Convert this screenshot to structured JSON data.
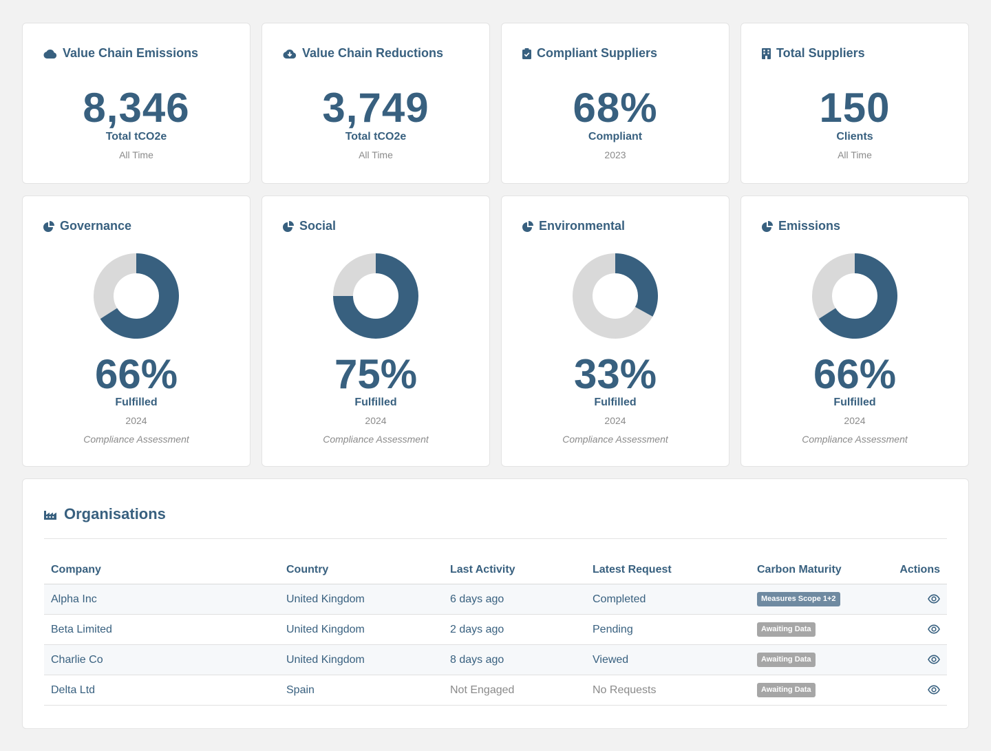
{
  "stats": [
    {
      "title": "Value Chain Emissions",
      "icon": "cloud-icon",
      "value": "8,346",
      "label": "Total tCO2e",
      "sub": "All Time"
    },
    {
      "title": "Value Chain Reductions",
      "icon": "cloud-download-icon",
      "value": "3,749",
      "label": "Total tCO2e",
      "sub": "All Time"
    },
    {
      "title": "Compliant Suppliers",
      "icon": "clipboard-check-icon",
      "value": "68%",
      "label": "Compliant",
      "sub": "2023"
    },
    {
      "title": "Total Suppliers",
      "icon": "building-icon",
      "value": "150",
      "label": "Clients",
      "sub": "All Time"
    }
  ],
  "compliance": [
    {
      "title": "Governance",
      "icon": "pie-chart-icon",
      "fraction": 0.66,
      "pct": "66%",
      "label": "Fulfilled",
      "year": "2024",
      "note": "Compliance Assessment"
    },
    {
      "title": "Social",
      "icon": "pie-chart-icon",
      "fraction": 0.75,
      "pct": "75%",
      "label": "Fulfilled",
      "year": "2024",
      "note": "Compliance Assessment"
    },
    {
      "title": "Environmental",
      "icon": "pie-chart-icon",
      "fraction": 0.33,
      "pct": "33%",
      "label": "Fulfilled",
      "year": "2024",
      "note": "Compliance Assessment"
    },
    {
      "title": "Emissions",
      "icon": "pie-chart-icon",
      "fraction": 0.66,
      "pct": "66%",
      "label": "Fulfilled",
      "year": "2024",
      "note": "Compliance Assessment"
    }
  ],
  "colors": {
    "primary": "#38607f",
    "track": "#d9d9d9",
    "muted": "#8a8a8a"
  },
  "organisations": {
    "title": "Organisations",
    "icon": "factory-icon",
    "columns": [
      "Company",
      "Country",
      "Last Activity",
      "Latest Request",
      "Carbon Maturity",
      "Actions"
    ],
    "rows": [
      {
        "company": "Alpha Inc",
        "country": "United Kingdom",
        "activity": "6 days ago",
        "request": "Completed",
        "maturity": "Measures Scope 1+2",
        "maturity_style": "primary"
      },
      {
        "company": "Beta Limited",
        "country": "United Kingdom",
        "activity": "2 days ago",
        "request": "Pending",
        "maturity": "Awaiting Data",
        "maturity_style": "grey"
      },
      {
        "company": "Charlie Co",
        "country": "United Kingdom",
        "activity": "8 days ago",
        "request": "Viewed",
        "maturity": "Awaiting Data",
        "maturity_style": "grey"
      },
      {
        "company": "Delta Ltd",
        "country": "Spain",
        "activity": "Not Engaged",
        "request": "No Requests",
        "maturity": "Awaiting Data",
        "maturity_style": "grey"
      }
    ],
    "action_icon": "eye-icon"
  }
}
